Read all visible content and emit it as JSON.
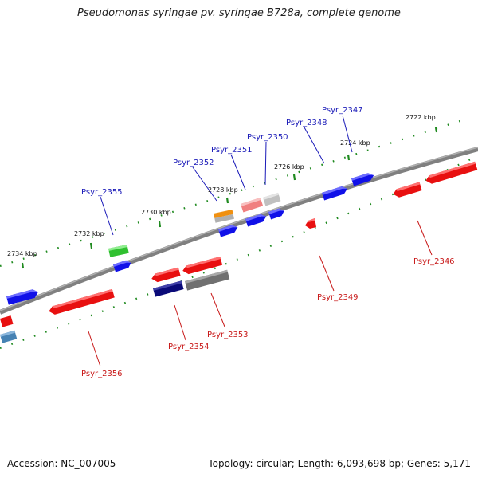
{
  "title": "Pseudomonas syringae pv. syringae B728a, complete genome",
  "accession": "Accession: NC_007005",
  "summary": "Topology: circular; Length: 6,093,698 bp; Genes: 5,171",
  "colors": {
    "backbone": "#808080",
    "ticks": "#1f8a1f",
    "forward_label": "#1a1ab8",
    "reverse_label": "#c81818",
    "blue": "#1010e8",
    "red": "#e81010",
    "pink": "#f08080",
    "lightgray": "#c0c0c0",
    "orange": "#f09010",
    "green": "#30c030",
    "navy": "#0a0a78",
    "darkgray": "#707070",
    "steelblue": "#4682b4"
  },
  "scale_labels": [
    "2722 kbp",
    "2724 kbp",
    "2726 kbp",
    "2728 kbp",
    "2730 kbp",
    "2732 kbp",
    "2734 kbp"
  ],
  "gene_labels": {
    "forward": [
      "Psyr_2347",
      "Psyr_2348",
      "Psyr_2350",
      "Psyr_2351",
      "Psyr_2352",
      "Psyr_2355"
    ],
    "reverse": [
      "Psyr_2346",
      "Psyr_2349",
      "Psyr_2353",
      "Psyr_2354",
      "Psyr_2356"
    ]
  }
}
